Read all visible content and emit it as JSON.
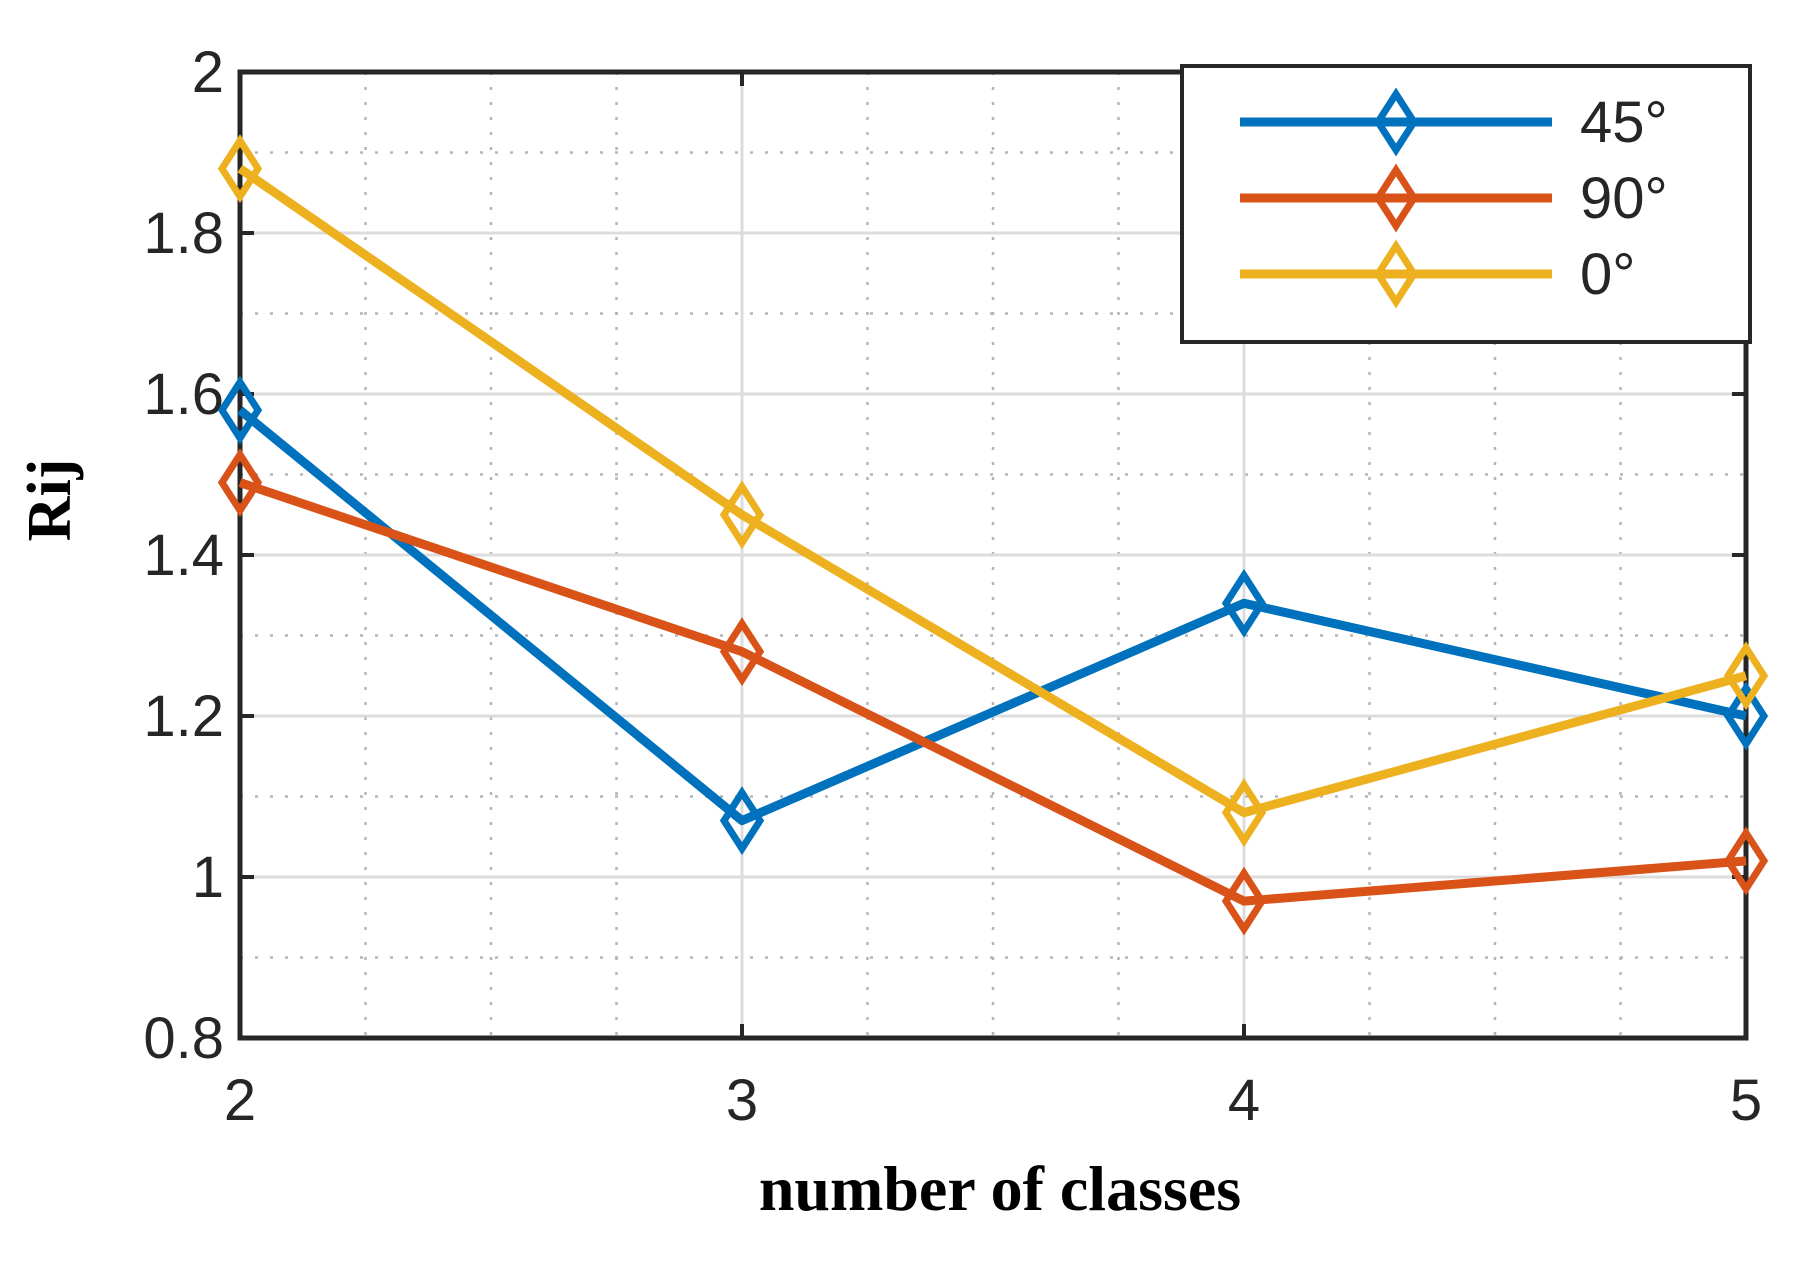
{
  "chart_data": {
    "type": "line",
    "title": "",
    "xlabel": "number of classes",
    "ylabel": "Rij",
    "xlim": [
      2,
      5
    ],
    "ylim": [
      0.8,
      2
    ],
    "x_ticks": [
      2,
      3,
      4,
      5
    ],
    "y_ticks": [
      0.8,
      1,
      1.2,
      1.4,
      1.6,
      1.8,
      2
    ],
    "y_tick_labels": [
      "0.8",
      "1",
      "1.2",
      "1.4",
      "1.6",
      "1.8",
      "2"
    ],
    "x_tick_labels": [
      "2",
      "3",
      "4",
      "5"
    ],
    "grid": true,
    "minor_grid": true,
    "legend_position": "top-right",
    "marker": "diamond",
    "x": [
      2,
      3,
      4,
      5
    ],
    "series": [
      {
        "name": "45°",
        "color": "#0072BD",
        "values": [
          1.58,
          1.07,
          1.34,
          1.2
        ]
      },
      {
        "name": "90°",
        "color": "#D95319",
        "values": [
          1.49,
          1.28,
          0.97,
          1.02
        ]
      },
      {
        "name": "0°",
        "color": "#EDB120",
        "values": [
          1.88,
          1.45,
          1.08,
          1.25
        ]
      }
    ]
  }
}
